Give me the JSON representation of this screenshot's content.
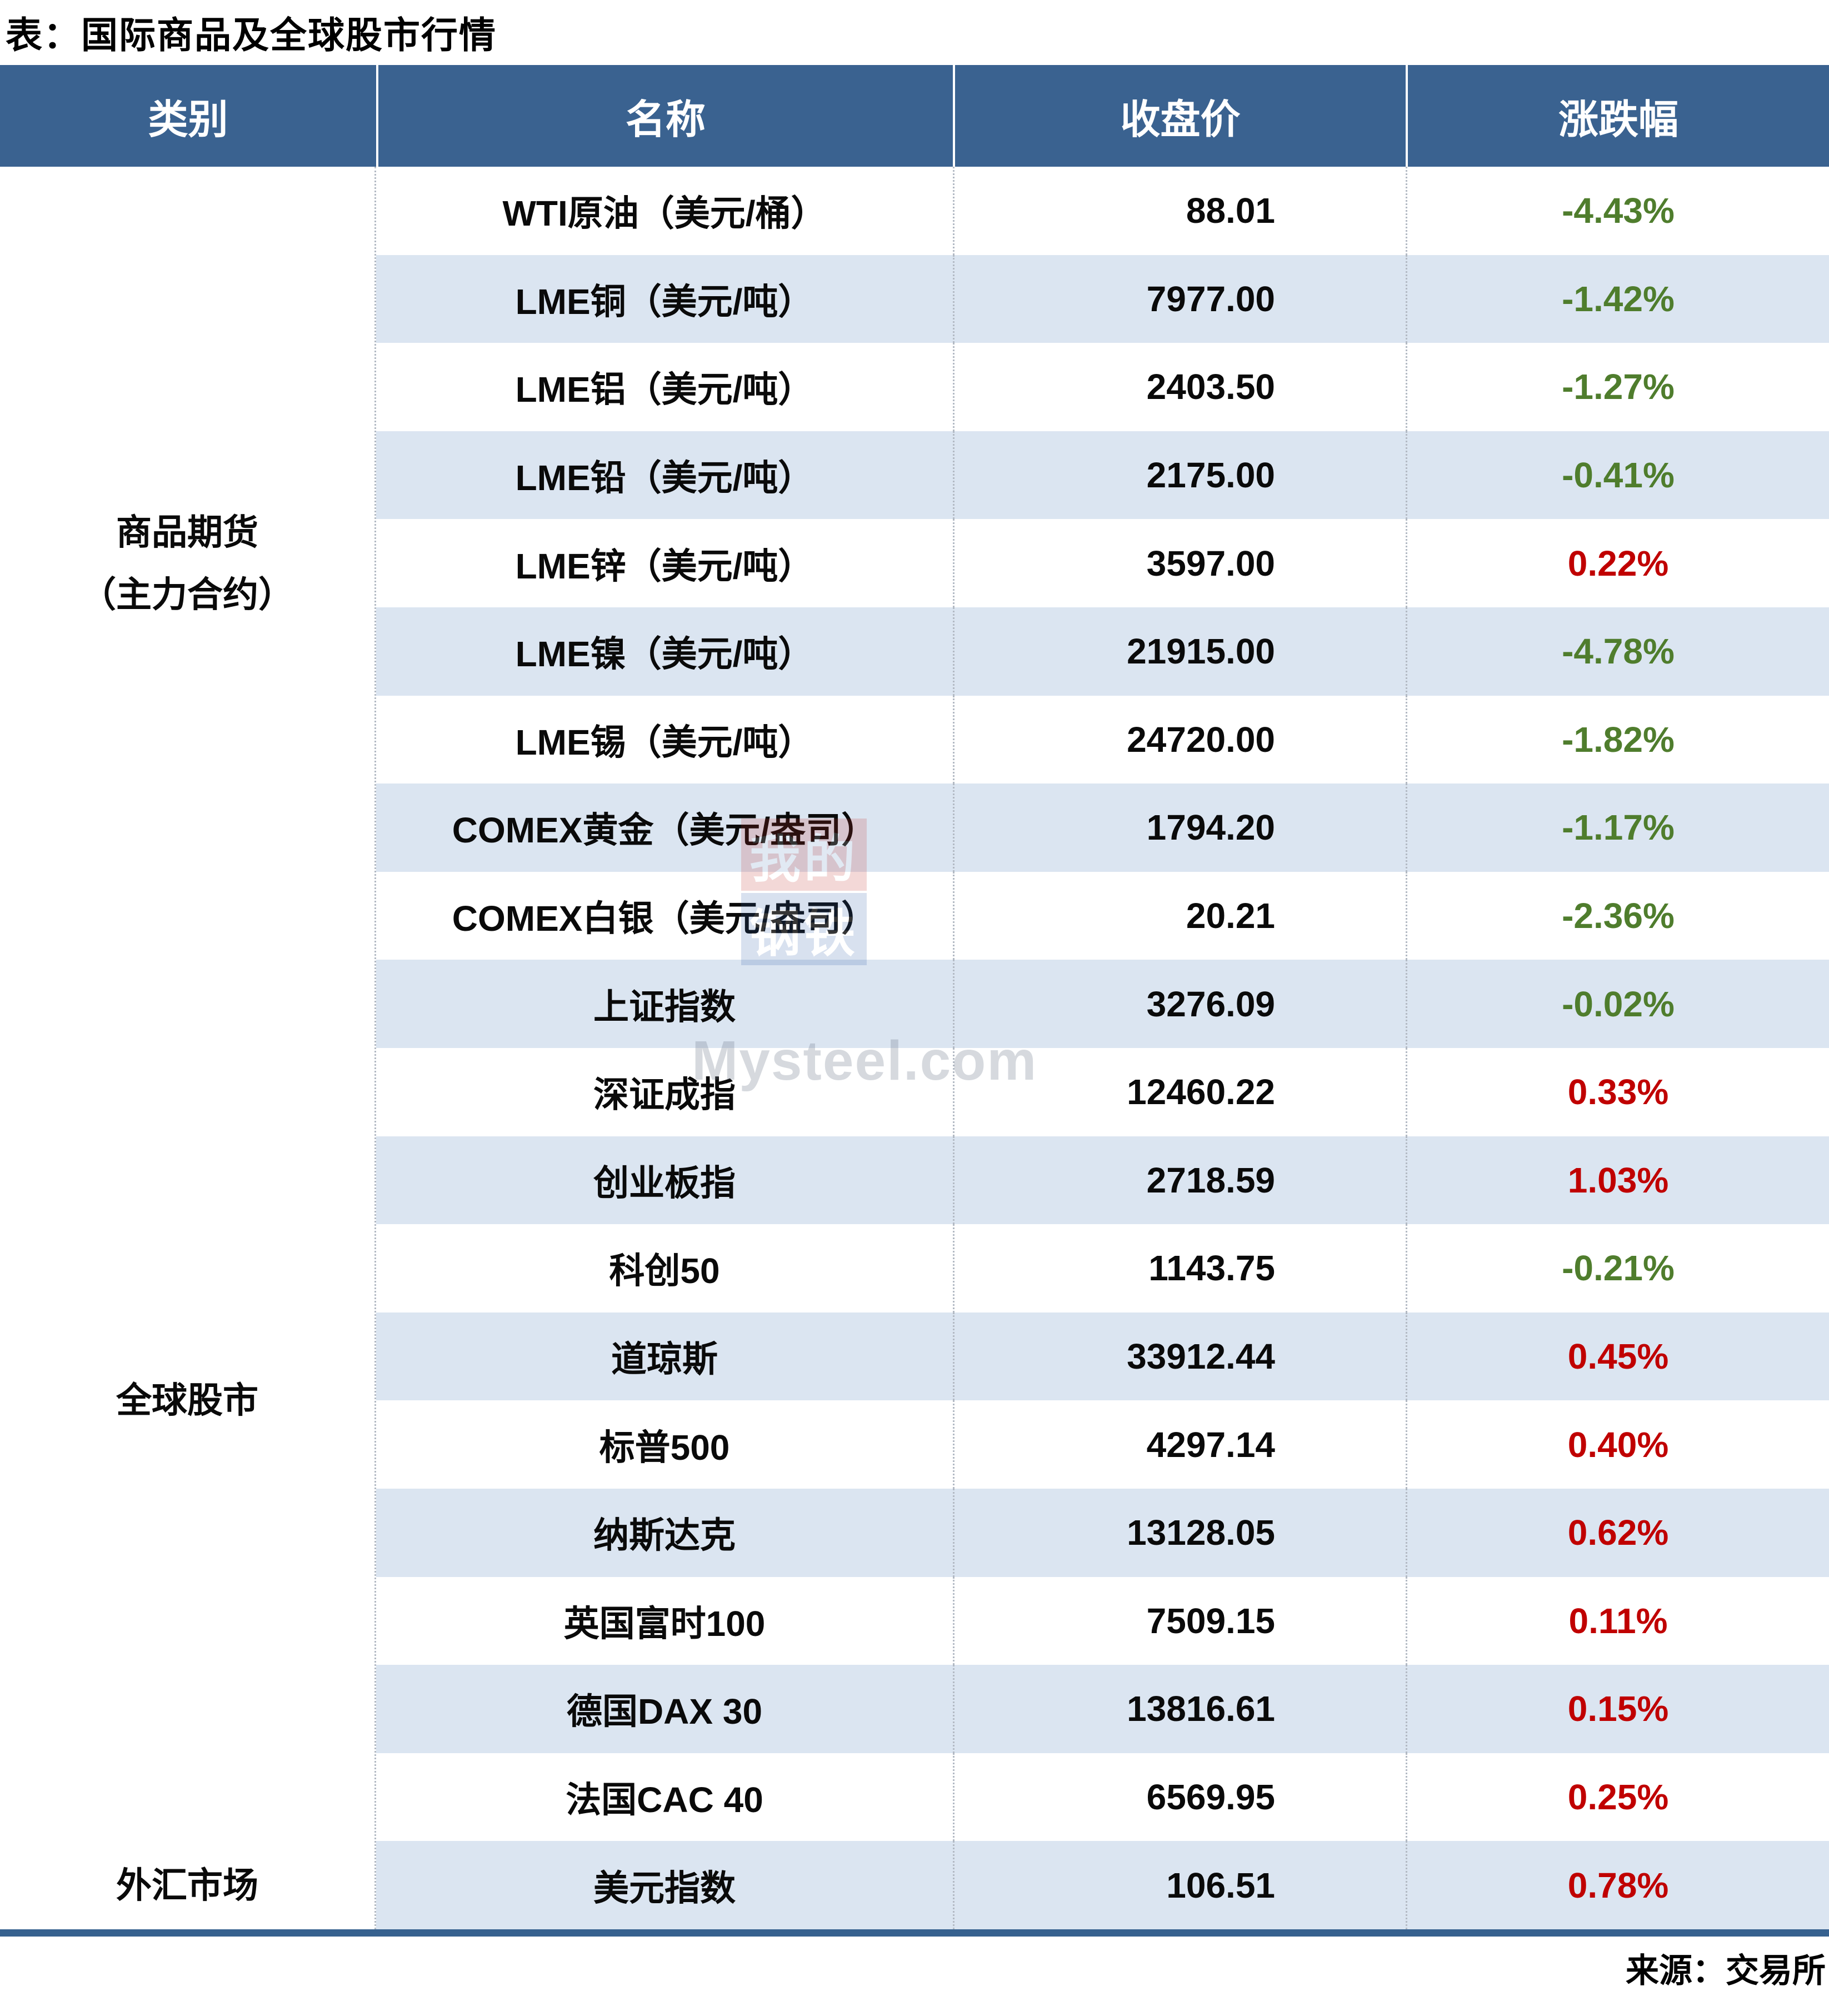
{
  "title": "表：国际商品及全球股市行情",
  "columns": [
    "类别",
    "名称",
    "收盘价",
    "涨跌幅"
  ],
  "groups": [
    {
      "category_lines": [
        "商品期货",
        "（主力合约）"
      ],
      "rows": [
        {
          "name": "WTI原油（美元/桶）",
          "close": "88.01",
          "change": "-4.43%",
          "dir": "down"
        },
        {
          "name": "LME铜（美元/吨）",
          "close": "7977.00",
          "change": "-1.42%",
          "dir": "down"
        },
        {
          "name": "LME铝（美元/吨）",
          "close": "2403.50",
          "change": "-1.27%",
          "dir": "down"
        },
        {
          "name": "LME铅（美元/吨）",
          "close": "2175.00",
          "change": "-0.41%",
          "dir": "down"
        },
        {
          "name": "LME锌（美元/吨）",
          "close": "3597.00",
          "change": "0.22%",
          "dir": "up"
        },
        {
          "name": "LME镍（美元/吨）",
          "close": "21915.00",
          "change": "-4.78%",
          "dir": "down"
        },
        {
          "name": "LME锡（美元/吨）",
          "close": "24720.00",
          "change": "-1.82%",
          "dir": "down"
        },
        {
          "name": "COMEX黄金（美元/盎司）",
          "close": "1794.20",
          "change": "-1.17%",
          "dir": "down"
        },
        {
          "name": "COMEX白银（美元/盎司）",
          "close": "20.21",
          "change": "-2.36%",
          "dir": "down"
        }
      ]
    },
    {
      "category_lines": [
        "全球股市"
      ],
      "rows": [
        {
          "name": "上证指数",
          "close": "3276.09",
          "change": "-0.02%",
          "dir": "down"
        },
        {
          "name": "深证成指",
          "close": "12460.22",
          "change": "0.33%",
          "dir": "up"
        },
        {
          "name": "创业板指",
          "close": "2718.59",
          "change": "1.03%",
          "dir": "up"
        },
        {
          "name": "科创50",
          "close": "1143.75",
          "change": "-0.21%",
          "dir": "down"
        },
        {
          "name": "道琼斯",
          "close": "33912.44",
          "change": "0.45%",
          "dir": "up"
        },
        {
          "name": "标普500",
          "close": "4297.14",
          "change": "0.40%",
          "dir": "up"
        },
        {
          "name": "纳斯达克",
          "close": "13128.05",
          "change": "0.62%",
          "dir": "up"
        },
        {
          "name": "英国富时100",
          "close": "7509.15",
          "change": "0.11%",
          "dir": "up"
        },
        {
          "name": "德国DAX 30",
          "close": "13816.61",
          "change": "0.15%",
          "dir": "up"
        },
        {
          "name": "法国CAC 40",
          "close": "6569.95",
          "change": "0.25%",
          "dir": "up"
        }
      ]
    },
    {
      "category_lines": [
        "外汇市场"
      ],
      "rows": [
        {
          "name": "美元指数",
          "close": "106.51",
          "change": "0.78%",
          "dir": "up"
        }
      ]
    }
  ],
  "footer": {
    "source": "来源：交易所"
  },
  "watermark": {
    "logo_top": "我的",
    "logo_bottom": "钢铁",
    "text": "Mysteel.com"
  },
  "colors": {
    "header_bg": "#3a6290",
    "stripe_bg": "#dbe5f1",
    "down_green": "#4f7d2d",
    "up_red": "#c00000",
    "bottom_bar": "#36618f"
  },
  "chart_data": {
    "type": "table",
    "title": "表：国际商品及全球股市行情",
    "columns": [
      "类别",
      "名称",
      "收盘价",
      "涨跌幅"
    ],
    "rows": [
      [
        "商品期货（主力合约）",
        "WTI原油（美元/桶）",
        88.01,
        "-4.43%"
      ],
      [
        "商品期货（主力合约）",
        "LME铜（美元/吨）",
        7977.0,
        "-1.42%"
      ],
      [
        "商品期货（主力合约）",
        "LME铝（美元/吨）",
        2403.5,
        "-1.27%"
      ],
      [
        "商品期货（主力合约）",
        "LME铅（美元/吨）",
        2175.0,
        "-0.41%"
      ],
      [
        "商品期货（主力合约）",
        "LME锌（美元/吨）",
        3597.0,
        "0.22%"
      ],
      [
        "商品期货（主力合约）",
        "LME镍（美元/吨）",
        21915.0,
        "-4.78%"
      ],
      [
        "商品期货（主力合约）",
        "LME锡（美元/吨）",
        24720.0,
        "-1.82%"
      ],
      [
        "商品期货（主力合约）",
        "COMEX黄金（美元/盎司）",
        1794.2,
        "-1.17%"
      ],
      [
        "商品期货（主力合约）",
        "COMEX白银（美元/盎司）",
        20.21,
        "-2.36%"
      ],
      [
        "全球股市",
        "上证指数",
        3276.09,
        "-0.02%"
      ],
      [
        "全球股市",
        "深证成指",
        12460.22,
        "0.33%"
      ],
      [
        "全球股市",
        "创业板指",
        2718.59,
        "1.03%"
      ],
      [
        "全球股市",
        "科创50",
        1143.75,
        "-0.21%"
      ],
      [
        "全球股市",
        "道琼斯",
        33912.44,
        "0.45%"
      ],
      [
        "全球股市",
        "标普500",
        4297.14,
        "0.40%"
      ],
      [
        "全球股市",
        "纳斯达克",
        13128.05,
        "0.62%"
      ],
      [
        "全球股市",
        "英国富时100",
        7509.15,
        "0.11%"
      ],
      [
        "全球股市",
        "德国DAX 30",
        13816.61,
        "0.15%"
      ],
      [
        "全球股市",
        "法国CAC 40",
        6569.95,
        "0.25%"
      ],
      [
        "外汇市场",
        "美元指数",
        106.51,
        "0.78%"
      ]
    ]
  }
}
